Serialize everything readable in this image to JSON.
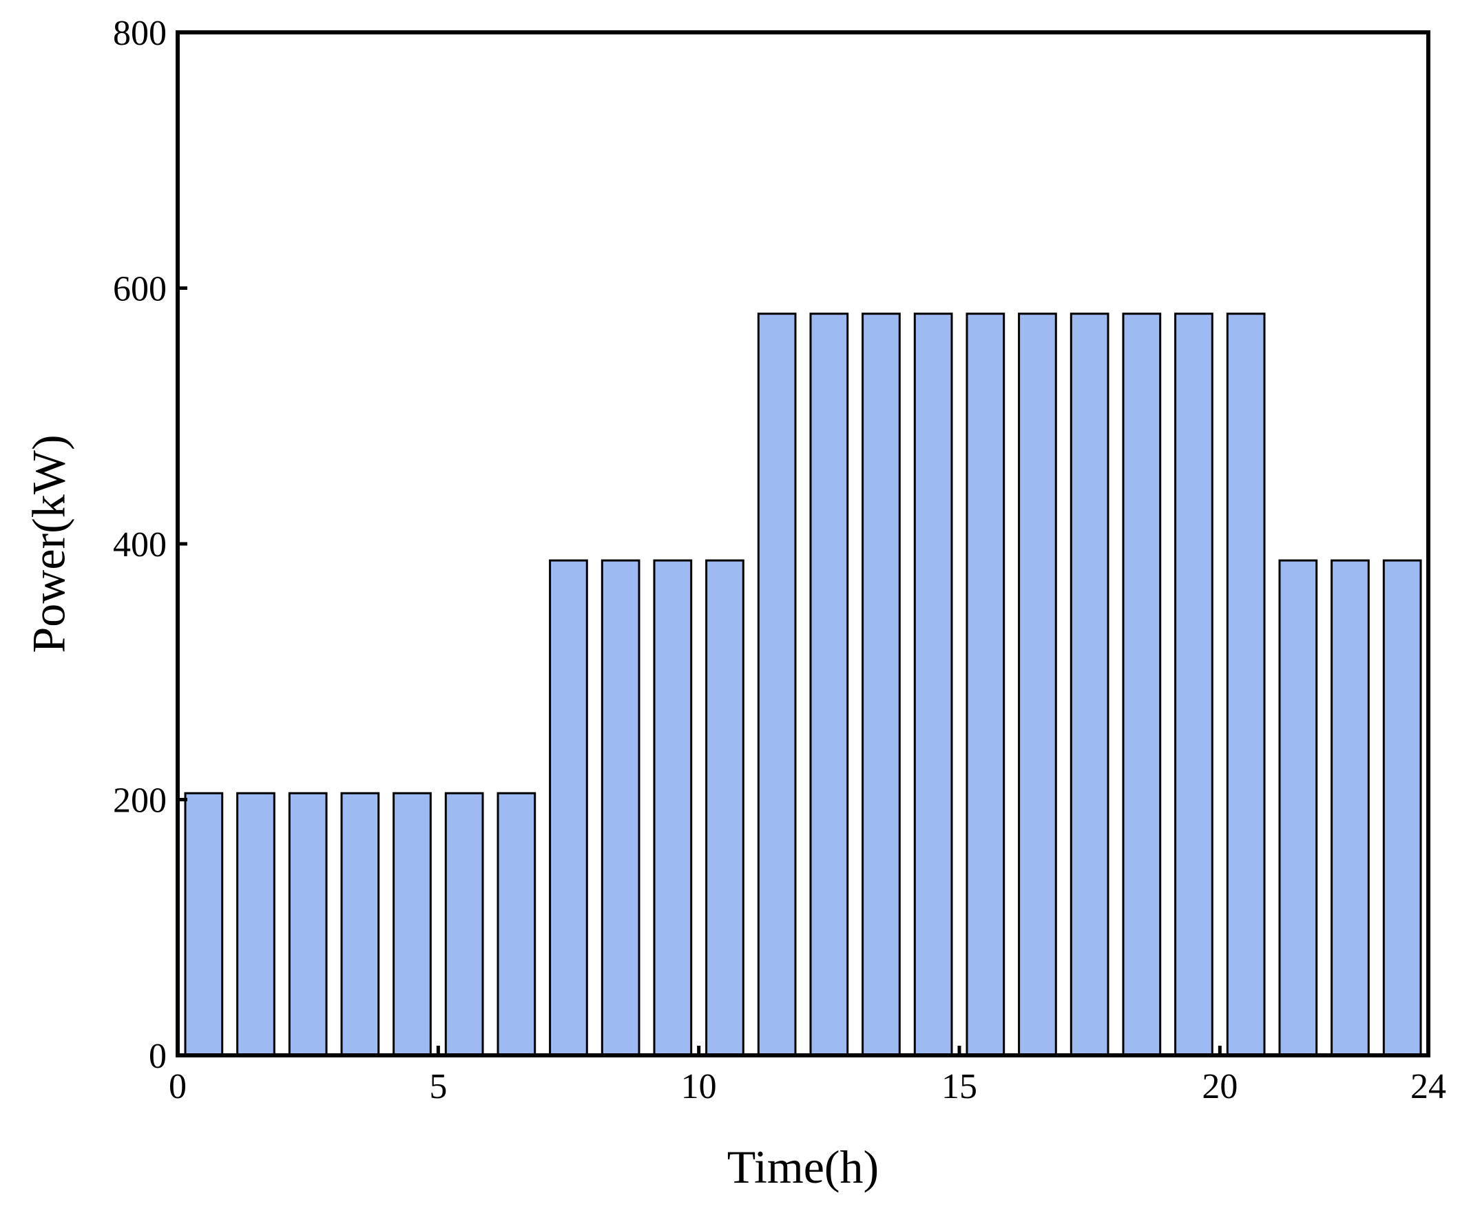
{
  "chart_data": {
    "type": "bar",
    "title": "",
    "xlabel": "Time(h)",
    "ylabel": "Power(kW)",
    "xlim": [
      0,
      24
    ],
    "ylim": [
      0,
      800
    ],
    "x_ticks": [
      "0",
      "5",
      "10",
      "15",
      "20",
      "24"
    ],
    "y_ticks": [
      "0",
      "200",
      "400",
      "600",
      "800"
    ],
    "grid": false,
    "legend": "none",
    "bar_color": "#9DBAF2",
    "bar_edge_color": "#000000",
    "categories": [
      1,
      2,
      3,
      4,
      5,
      6,
      7,
      8,
      9,
      10,
      11,
      12,
      13,
      14,
      15,
      16,
      17,
      18,
      19,
      20,
      21,
      22,
      23,
      24
    ],
    "values": [
      205,
      205,
      205,
      205,
      205,
      205,
      205,
      387,
      387,
      387,
      387,
      580,
      580,
      580,
      580,
      580,
      580,
      580,
      580,
      580,
      580,
      387,
      387,
      387
    ]
  }
}
